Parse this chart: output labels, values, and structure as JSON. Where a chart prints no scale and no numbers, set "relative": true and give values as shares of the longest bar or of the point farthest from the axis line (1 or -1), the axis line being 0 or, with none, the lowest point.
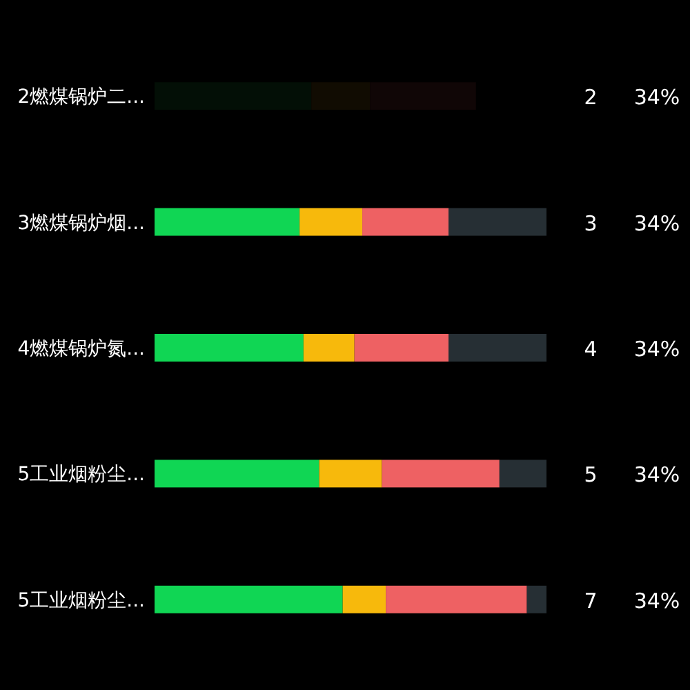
{
  "chart_data": {
    "type": "bar",
    "orientation": "horizontal",
    "stacked": true,
    "relative": true,
    "categories": [
      "2燃煤锅炉二...",
      "3燃煤锅炉烟...",
      "4燃煤锅炉氮...",
      "5工业烟粉尘...",
      "5工业烟粉尘..."
    ],
    "series": [
      {
        "colors": [
          "#030f06",
          "#10d654",
          "#10d654",
          "#10d654",
          "#10d654"
        ],
        "values": [
          0.4,
          0.37,
          0.38,
          0.42,
          0.48
        ]
      },
      {
        "colors": [
          "#110c02",
          "#f7b90c",
          "#f7b90c",
          "#f7b90c",
          "#f7b90c"
        ],
        "values": [
          0.15,
          0.16,
          0.13,
          0.16,
          0.11
        ]
      },
      {
        "colors": [
          "#100606",
          "#ee6163",
          "#ee6163",
          "#ee6163",
          "#ee6163"
        ],
        "values": [
          0.27,
          0.22,
          0.24,
          0.3,
          0.36
        ]
      },
      {
        "colors": [
          "#000000",
          "#262f34",
          "#262f34",
          "#262f34",
          "#262f34"
        ],
        "values": [
          0,
          0.25,
          0.25,
          0.12,
          0.05
        ]
      }
    ],
    "annotations": [
      "2",
      "34%",
      "3",
      "34%",
      "4",
      "34%",
      "5",
      "34%",
      "7",
      "34%"
    ]
  }
}
